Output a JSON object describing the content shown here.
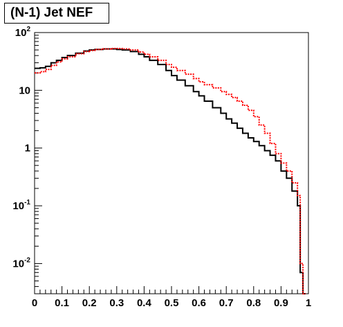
{
  "chart_data": {
    "type": "line",
    "title": "(N-1) Jet NEF",
    "xlabel": "",
    "ylabel": "",
    "xlim": [
      0,
      1
    ],
    "ylim": [
      0.003,
      100
    ],
    "yscale": "log",
    "grid": false,
    "x_ticks": [
      "0",
      "0.1",
      "0.2",
      "0.3",
      "0.4",
      "0.5",
      "0.6",
      "0.7",
      "0.8",
      "0.9",
      "1"
    ],
    "y_ticks": [
      {
        "value": 0.01,
        "base": "10",
        "exp": "-2"
      },
      {
        "value": 0.1,
        "base": "10",
        "exp": "-1"
      },
      {
        "value": 1,
        "base": "1",
        "exp": ""
      },
      {
        "value": 10,
        "base": "10",
        "exp": ""
      },
      {
        "value": 100,
        "base": "10",
        "exp": "2"
      }
    ],
    "series": [
      {
        "color": "#000000",
        "style": "solid-step",
        "x": [
          0.0,
          0.02,
          0.04,
          0.06,
          0.08,
          0.1,
          0.12,
          0.15,
          0.18,
          0.2,
          0.22,
          0.25,
          0.28,
          0.3,
          0.32,
          0.35,
          0.38,
          0.4,
          0.42,
          0.45,
          0.48,
          0.5,
          0.52,
          0.55,
          0.58,
          0.6,
          0.62,
          0.65,
          0.68,
          0.7,
          0.72,
          0.74,
          0.76,
          0.78,
          0.8,
          0.82,
          0.84,
          0.86,
          0.88,
          0.9,
          0.92,
          0.94,
          0.96,
          0.97,
          0.98
        ],
        "y": [
          24,
          24.5,
          26,
          30,
          33,
          37,
          40,
          44,
          48,
          50,
          51,
          52,
          52,
          51,
          50,
          47,
          42,
          38,
          33,
          28,
          22,
          18,
          15,
          12,
          9.5,
          8,
          6.5,
          5,
          4,
          3.2,
          2.7,
          2.2,
          1.8,
          1.5,
          1.3,
          1.1,
          0.9,
          0.75,
          0.6,
          0.4,
          0.3,
          0.18,
          0.1,
          0.007,
          0.003
        ]
      },
      {
        "color": "#ff0000",
        "style": "dotted-step",
        "x": [
          0.0,
          0.02,
          0.04,
          0.06,
          0.08,
          0.1,
          0.12,
          0.15,
          0.18,
          0.2,
          0.22,
          0.25,
          0.28,
          0.3,
          0.32,
          0.35,
          0.38,
          0.4,
          0.42,
          0.45,
          0.48,
          0.5,
          0.52,
          0.55,
          0.58,
          0.6,
          0.62,
          0.65,
          0.68,
          0.7,
          0.72,
          0.74,
          0.76,
          0.78,
          0.8,
          0.82,
          0.84,
          0.86,
          0.88,
          0.9,
          0.92,
          0.94,
          0.96,
          0.97,
          0.98
        ],
        "y": [
          20,
          21,
          23,
          27,
          31,
          35,
          38,
          43,
          47,
          49,
          51,
          52,
          53,
          53,
          52,
          50,
          46,
          42,
          38,
          33,
          28,
          25,
          22,
          19,
          16,
          14,
          12.5,
          11,
          9.5,
          8.5,
          7.5,
          6.5,
          5.5,
          4.5,
          3.5,
          2.5,
          1.8,
          1.2,
          0.8,
          0.55,
          0.4,
          0.25,
          0.15,
          0.01,
          0.003
        ]
      }
    ]
  }
}
